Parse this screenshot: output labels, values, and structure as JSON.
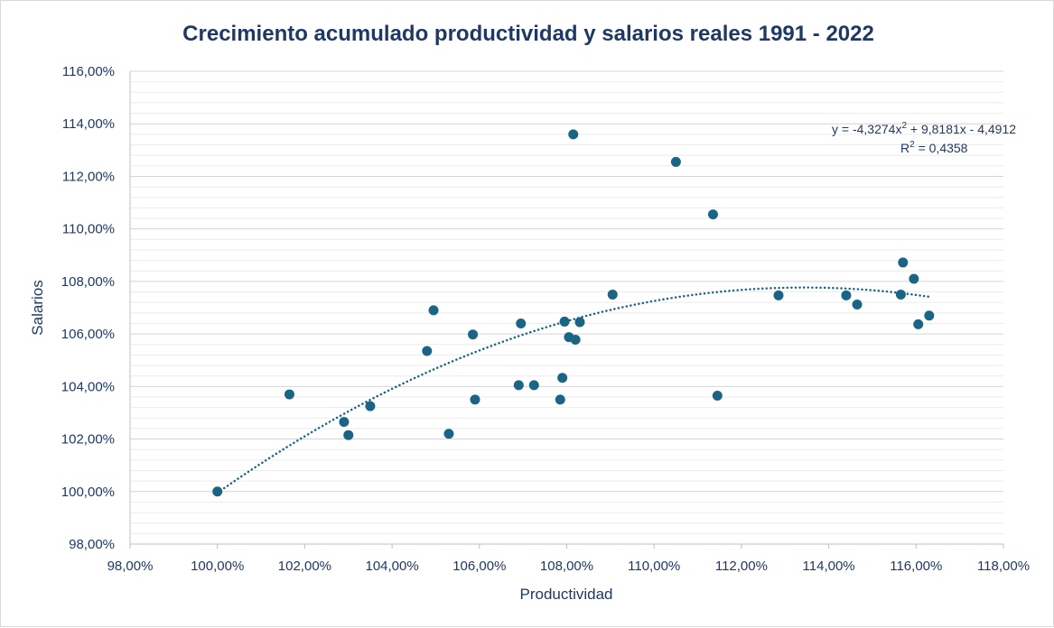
{
  "chart_data": {
    "type": "scatter",
    "title": "Crecimiento acumulado productividad y salarios reales 1991 - 2022",
    "xlabel": "Productividad",
    "ylabel": "Salarios",
    "xlim": [
      98,
      118
    ],
    "ylim": [
      98,
      116
    ],
    "x_ticks": [
      "98,00%",
      "100,00%",
      "102,00%",
      "104,00%",
      "106,00%",
      "108,00%",
      "110,00%",
      "112,00%",
      "114,00%",
      "116,00%",
      "118,00%"
    ],
    "y_ticks": [
      "98,00%",
      "100,00%",
      "102,00%",
      "104,00%",
      "106,00%",
      "108,00%",
      "110,00%",
      "112,00%",
      "114,00%",
      "116,00%"
    ],
    "marker_color": "#1a6586",
    "trendline_color": "#1a6586",
    "points": [
      {
        "x": 100.0,
        "y": 100.0
      },
      {
        "x": 101.65,
        "y": 103.7
      },
      {
        "x": 102.9,
        "y": 102.65
      },
      {
        "x": 103.0,
        "y": 102.15
      },
      {
        "x": 103.5,
        "y": 103.25
      },
      {
        "x": 104.8,
        "y": 105.35
      },
      {
        "x": 104.95,
        "y": 106.9
      },
      {
        "x": 105.3,
        "y": 102.2
      },
      {
        "x": 105.85,
        "y": 105.98
      },
      {
        "x": 105.9,
        "y": 103.5
      },
      {
        "x": 106.9,
        "y": 104.05
      },
      {
        "x": 106.95,
        "y": 106.4
      },
      {
        "x": 107.25,
        "y": 104.05
      },
      {
        "x": 107.85,
        "y": 103.5
      },
      {
        "x": 107.9,
        "y": 104.33
      },
      {
        "x": 107.95,
        "y": 106.47
      },
      {
        "x": 108.05,
        "y": 105.88
      },
      {
        "x": 108.15,
        "y": 113.6
      },
      {
        "x": 108.2,
        "y": 105.78
      },
      {
        "x": 108.3,
        "y": 106.45
      },
      {
        "x": 109.05,
        "y": 107.5
      },
      {
        "x": 110.5,
        "y": 112.55
      },
      {
        "x": 111.35,
        "y": 110.55
      },
      {
        "x": 111.45,
        "y": 103.65
      },
      {
        "x": 112.85,
        "y": 107.47
      },
      {
        "x": 114.4,
        "y": 107.47
      },
      {
        "x": 114.65,
        "y": 107.12
      },
      {
        "x": 115.65,
        "y": 107.5
      },
      {
        "x": 115.7,
        "y": 108.72
      },
      {
        "x": 115.95,
        "y": 108.1
      },
      {
        "x": 116.05,
        "y": 106.37
      },
      {
        "x": 116.3,
        "y": 106.7
      }
    ],
    "trendline": {
      "type": "polynomial",
      "order": 2,
      "coefficients": [
        -4.3274,
        9.8181,
        -4.4912
      ],
      "x_range": [
        100,
        116.3
      ],
      "style": "dotted",
      "equation_prefix": "y = -4,3274x",
      "equation_exp": "2",
      "equation_suffix": " + 9,8181x - 4,4912",
      "r2_prefix": "R",
      "r2_exp": "2",
      "r2_suffix": " = 0,4358"
    }
  }
}
